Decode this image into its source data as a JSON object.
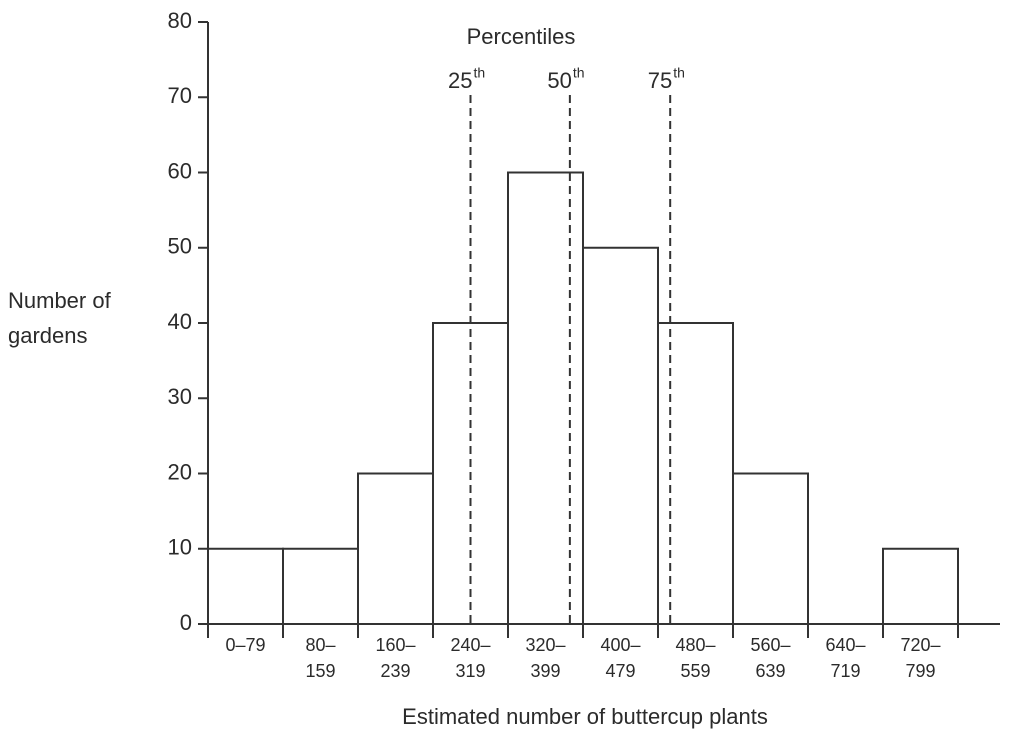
{
  "chart_data": {
    "type": "bar",
    "categories": [
      [
        "0–79"
      ],
      [
        "80–",
        "159"
      ],
      [
        "160–",
        "239"
      ],
      [
        "240–",
        "319"
      ],
      [
        "320–",
        "399"
      ],
      [
        "400–",
        "479"
      ],
      [
        "480–",
        "559"
      ],
      [
        "560–",
        "639"
      ],
      [
        "640–",
        "719"
      ],
      [
        "720–",
        "799"
      ]
    ],
    "values": [
      10,
      10,
      20,
      40,
      60,
      50,
      40,
      20,
      0,
      10
    ],
    "color": "#333333",
    "ylim": [
      0,
      80
    ],
    "yticks": [
      0,
      10,
      20,
      30,
      40,
      50,
      60,
      70,
      80
    ],
    "xlim": [
      0,
      800
    ],
    "y_label": [
      "Number of",
      "gardens"
    ],
    "x_label": "Estimated number of buttercup plants",
    "percentile_title": "Percentiles",
    "percentiles": [
      {
        "label": "25",
        "suffix": "th",
        "value": 280
      },
      {
        "label": "50",
        "suffix": "th",
        "value": 386
      },
      {
        "label": "75",
        "suffix": "th",
        "value": 493
      }
    ]
  }
}
